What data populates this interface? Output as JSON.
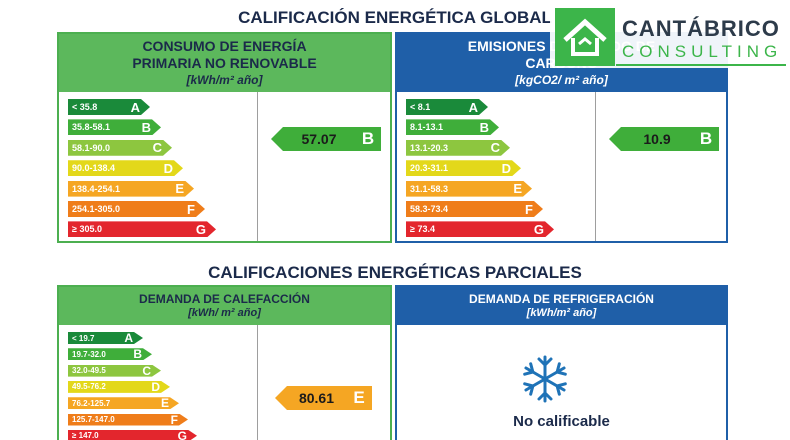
{
  "title": "CALIFICACIÓN ENERGÉTICA GLOBAL",
  "logo": {
    "name": "CANTÁBRICO",
    "tagline": "CONSULTING"
  },
  "global": [
    {
      "heading": [
        "CONSUMO DE ENERGÍA",
        "PRIMARIA NO RENOVABLE"
      ],
      "unit": "[kWh/m² año]",
      "scale": [
        {
          "range": "< 35.8",
          "letter": "A"
        },
        {
          "range": "35.8-58.1",
          "letter": "B"
        },
        {
          "range": "58.1-90.0",
          "letter": "C"
        },
        {
          "range": "90.0-138.4",
          "letter": "D"
        },
        {
          "range": "138.4-254.1",
          "letter": "E"
        },
        {
          "range": "254.1-305.0",
          "letter": "F"
        },
        {
          "range": "≥ 305.0",
          "letter": "G"
        }
      ],
      "result": {
        "value": 57.07,
        "letter": "B"
      }
    },
    {
      "heading": [
        "EMISIONES DE DIÓXIDO DE",
        "CARBONO"
      ],
      "unit": "[kgCO2/ m² año]",
      "scale": [
        {
          "range": "< 8.1",
          "letter": "A"
        },
        {
          "range": "8.1-13.1",
          "letter": "B"
        },
        {
          "range": "13.1-20.3",
          "letter": "C"
        },
        {
          "range": "20.3-31.1",
          "letter": "D"
        },
        {
          "range": "31.1-58.3",
          "letter": "E"
        },
        {
          "range": "58.3-73.4",
          "letter": "F"
        },
        {
          "range": "≥ 73.4",
          "letter": "G"
        }
      ],
      "result": {
        "value": 10.9,
        "letter": "B"
      }
    }
  ],
  "partial_title": "CALIFICACIONES ENERGÉTICAS PARCIALES",
  "partial": [
    {
      "heading": [
        "DEMANDA DE CALEFACCIÓN"
      ],
      "unit": "[kWh/ m² año]",
      "scale": [
        {
          "range": "< 19.7",
          "letter": "A"
        },
        {
          "range": "19.7-32.0",
          "letter": "B"
        },
        {
          "range": "32.0-49.5",
          "letter": "C"
        },
        {
          "range": "49.5-76.2",
          "letter": "D"
        },
        {
          "range": "76.2-125.7",
          "letter": "E"
        },
        {
          "range": "125.7-147.0",
          "letter": "F"
        },
        {
          "range": "≥ 147.0",
          "letter": "G"
        }
      ],
      "result": {
        "value": 80.61,
        "letter": "E"
      }
    },
    {
      "heading": [
        "DEMANDA DE REFRIGERACIÓN"
      ],
      "unit": "[kWh/m² año]",
      "status": "No calificable"
    }
  ]
}
